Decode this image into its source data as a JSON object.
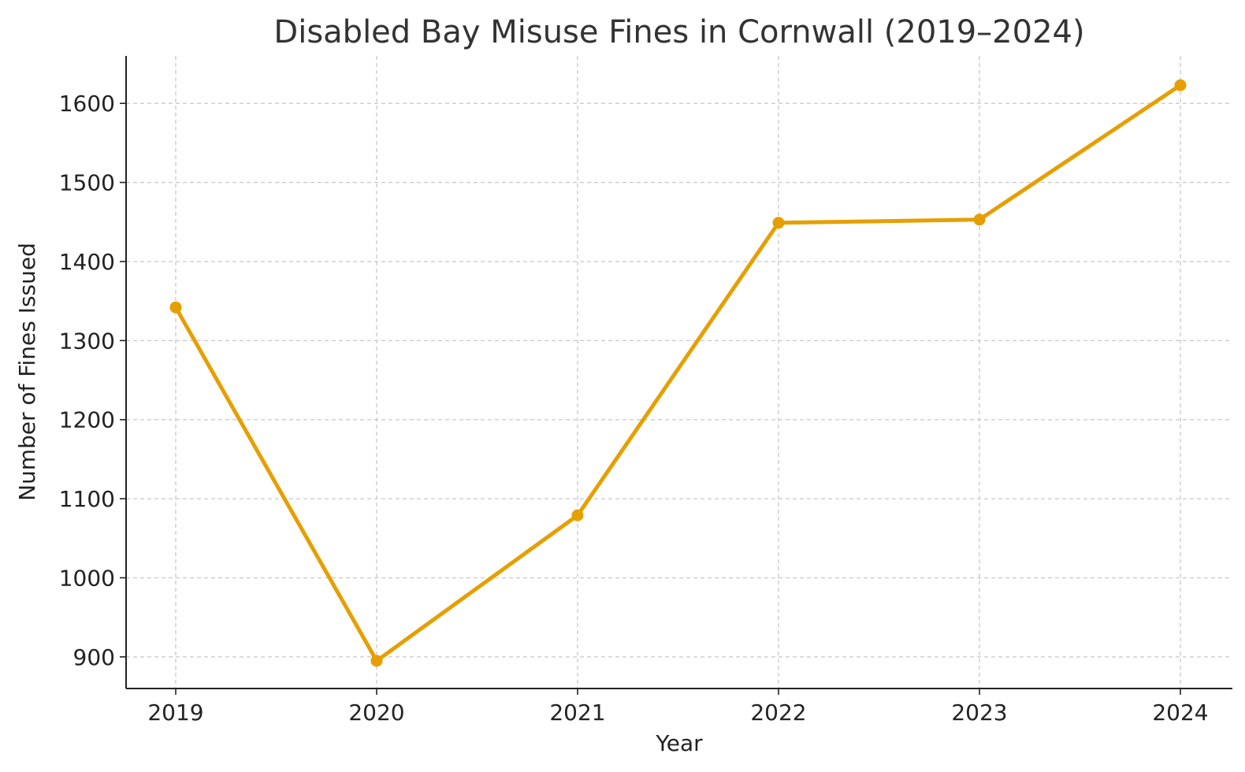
{
  "chart_data": {
    "type": "line",
    "title": "Disabled Bay Misuse Fines in Cornwall (2019–2024)",
    "xlabel": "Year",
    "ylabel": "Number of Fines Issued",
    "x": [
      "2019",
      "2020",
      "2021",
      "2022",
      "2023",
      "2024"
    ],
    "y_ticks": [
      900,
      1000,
      1100,
      1200,
      1300,
      1400,
      1500,
      1600
    ],
    "ylim": [
      860,
      1660
    ],
    "series": [
      {
        "values": [
          1342,
          895,
          1079,
          1449,
          1453,
          1623
        ],
        "color": "#E69F00"
      }
    ],
    "grid": true
  }
}
